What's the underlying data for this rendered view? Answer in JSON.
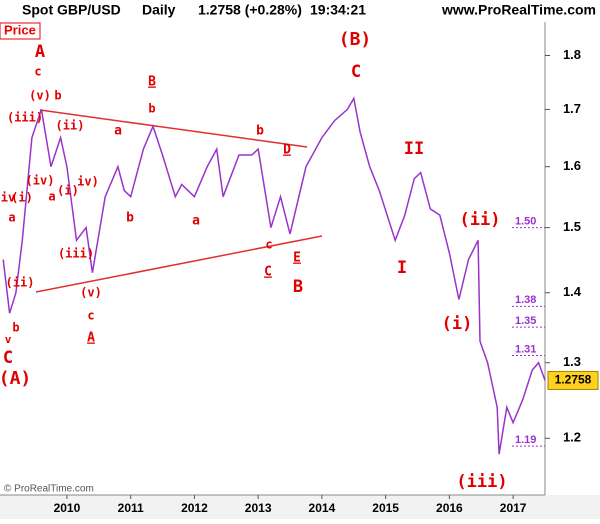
{
  "header": {
    "symbol": "Spot GBP/USD",
    "period": "Daily",
    "quote": "1.2758 (+0.28%)",
    "time": "19:34:21",
    "site": "www.ProRealTime.com",
    "price_tag": "Price",
    "copyright": "© ProRealTime.com"
  },
  "chart_data": {
    "type": "line",
    "log_scale": true,
    "x": [
      2009.0,
      2009.1,
      2009.2,
      2009.3,
      2009.45,
      2009.6,
      2009.75,
      2009.9,
      2010.0,
      2010.15,
      2010.3,
      2010.4,
      2010.6,
      2010.8,
      2010.9,
      2011.0,
      2011.2,
      2011.35,
      2011.5,
      2011.7,
      2011.8,
      2012.0,
      2012.2,
      2012.35,
      2012.45,
      2012.7,
      2012.9,
      2013.0,
      2013.2,
      2013.35,
      2013.5,
      2013.75,
      2014.0,
      2014.2,
      2014.4,
      2014.5,
      2014.6,
      2014.75,
      2014.9,
      2015.15,
      2015.3,
      2015.45,
      2015.55,
      2015.7,
      2015.85,
      2016.0,
      2016.15,
      2016.3,
      2016.45,
      2016.48,
      2016.6,
      2016.75,
      2016.78,
      2016.9,
      2017.0,
      2017.15,
      2017.3,
      2017.4,
      2017.5
    ],
    "series": [
      {
        "name": "GBP/USD",
        "color": "#9933cc",
        "values": [
          1.45,
          1.37,
          1.4,
          1.48,
          1.65,
          1.7,
          1.6,
          1.65,
          1.6,
          1.48,
          1.5,
          1.43,
          1.55,
          1.6,
          1.56,
          1.55,
          1.63,
          1.67,
          1.62,
          1.55,
          1.57,
          1.55,
          1.6,
          1.63,
          1.55,
          1.62,
          1.62,
          1.63,
          1.5,
          1.55,
          1.49,
          1.6,
          1.65,
          1.68,
          1.7,
          1.72,
          1.66,
          1.6,
          1.56,
          1.48,
          1.52,
          1.58,
          1.59,
          1.53,
          1.52,
          1.46,
          1.39,
          1.45,
          1.48,
          1.33,
          1.3,
          1.24,
          1.18,
          1.24,
          1.22,
          1.25,
          1.29,
          1.3,
          1.2758
        ]
      }
    ],
    "xlim": [
      2008.95,
      2017.5
    ],
    "xticks": [
      2010,
      2011,
      2012,
      2013,
      2014,
      2015,
      2016,
      2017
    ],
    "ylim": [
      1.13,
      1.865
    ],
    "yticks": [
      1.2,
      1.3,
      1.4,
      1.5,
      1.6,
      1.7,
      1.8
    ],
    "last_price": 1.2758,
    "levels": [
      {
        "value": 1.5,
        "label": "1.50"
      },
      {
        "value": 1.38,
        "label": "1.38"
      },
      {
        "value": 1.35,
        "label": "1.35"
      },
      {
        "value": 1.31,
        "label": "1.31"
      },
      {
        "value": 1.19,
        "label": "1.19"
      }
    ],
    "annotations": [
      "A",
      "c",
      "(v)",
      "b",
      "(iii)",
      "(ii)",
      "a",
      "B",
      "b",
      "b",
      "D",
      "(iv)",
      "(i)",
      "iv)",
      "a",
      "iv",
      "(i)",
      "a",
      "b",
      "a",
      "c",
      "(iii)",
      "E",
      "C",
      "B",
      "(v)",
      "(ii)",
      "c",
      "A",
      "b",
      "v",
      "C",
      "(A)",
      "(B)",
      "C",
      "II",
      "I",
      "(ii)",
      "(i)",
      "(iii)"
    ]
  }
}
